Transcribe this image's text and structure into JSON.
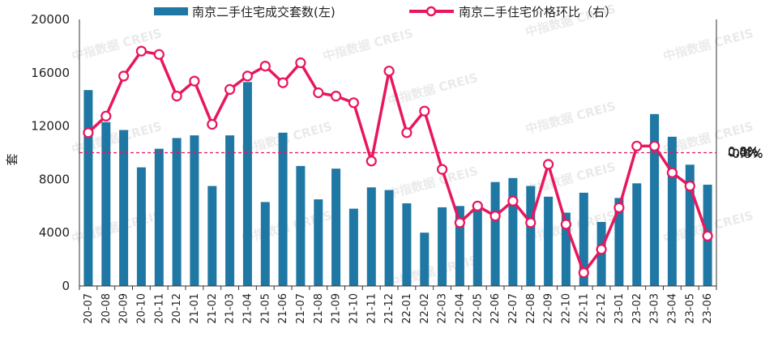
{
  "chart_data": {
    "type": "bar+line",
    "categories": [
      "20-07",
      "20-08",
      "20-09",
      "20-10",
      "20-11",
      "20-12",
      "21-01",
      "21-02",
      "21-03",
      "21-04",
      "21-05",
      "21-06",
      "21-07",
      "21-08",
      "21-09",
      "21-10",
      "21-11",
      "21-12",
      "22-01",
      "22-02",
      "22-03",
      "22-04",
      "22-05",
      "22-06",
      "22-07",
      "22-08",
      "22-09",
      "22-10",
      "22-11",
      "22-12",
      "23-01",
      "23-02",
      "23-03",
      "23-04",
      "23-05",
      "23-06"
    ],
    "series": [
      {
        "name": "南京二手住宅成交套数(左)",
        "type": "bar",
        "axis": "left",
        "color": "#1f77a4",
        "values": [
          14700,
          12300,
          11700,
          8900,
          10300,
          11100,
          11300,
          7500,
          11300,
          15300,
          6300,
          11500,
          9000,
          6500,
          8800,
          5800,
          7400,
          7200,
          6200,
          4000,
          5900,
          6000,
          6000,
          7800,
          8100,
          7500,
          6700,
          5500,
          7000,
          4800,
          6600,
          7700,
          12900,
          11200,
          9100,
          7600
        ]
      },
      {
        "name": "南京二手住宅价格环比（右）",
        "type": "line",
        "axis": "right",
        "color": "#e8175d",
        "values": [
          0.12,
          0.22,
          0.46,
          0.61,
          0.59,
          0.34,
          0.43,
          0.17,
          0.38,
          0.46,
          0.52,
          0.42,
          0.54,
          0.36,
          0.34,
          0.3,
          -0.05,
          0.49,
          0.12,
          0.25,
          -0.1,
          -0.42,
          -0.32,
          -0.38,
          -0.29,
          -0.42,
          -0.07,
          -0.43,
          -0.72,
          -0.58,
          -0.33,
          0.04,
          0.04,
          -0.12,
          -0.2,
          -0.5
        ]
      }
    ],
    "y_left": {
      "min": 0,
      "max": 20000,
      "ticks": [
        0,
        4000,
        8000,
        12000,
        16000,
        20000
      ],
      "label": "套"
    },
    "y_right": {
      "min": -0.8,
      "max": 0.8,
      "ticks": [
        "-0.8%",
        "-0.4%",
        "0.0%",
        "0.4%",
        "0.8%"
      ]
    },
    "reference_line": {
      "axis": "right",
      "value": 0.0,
      "style": "dashed",
      "color": "#e8175d"
    },
    "legend_position": "top",
    "grid": false
  },
  "watermark": {
    "text": "中指数据 CREIS",
    "color": "#d9d9d9"
  }
}
